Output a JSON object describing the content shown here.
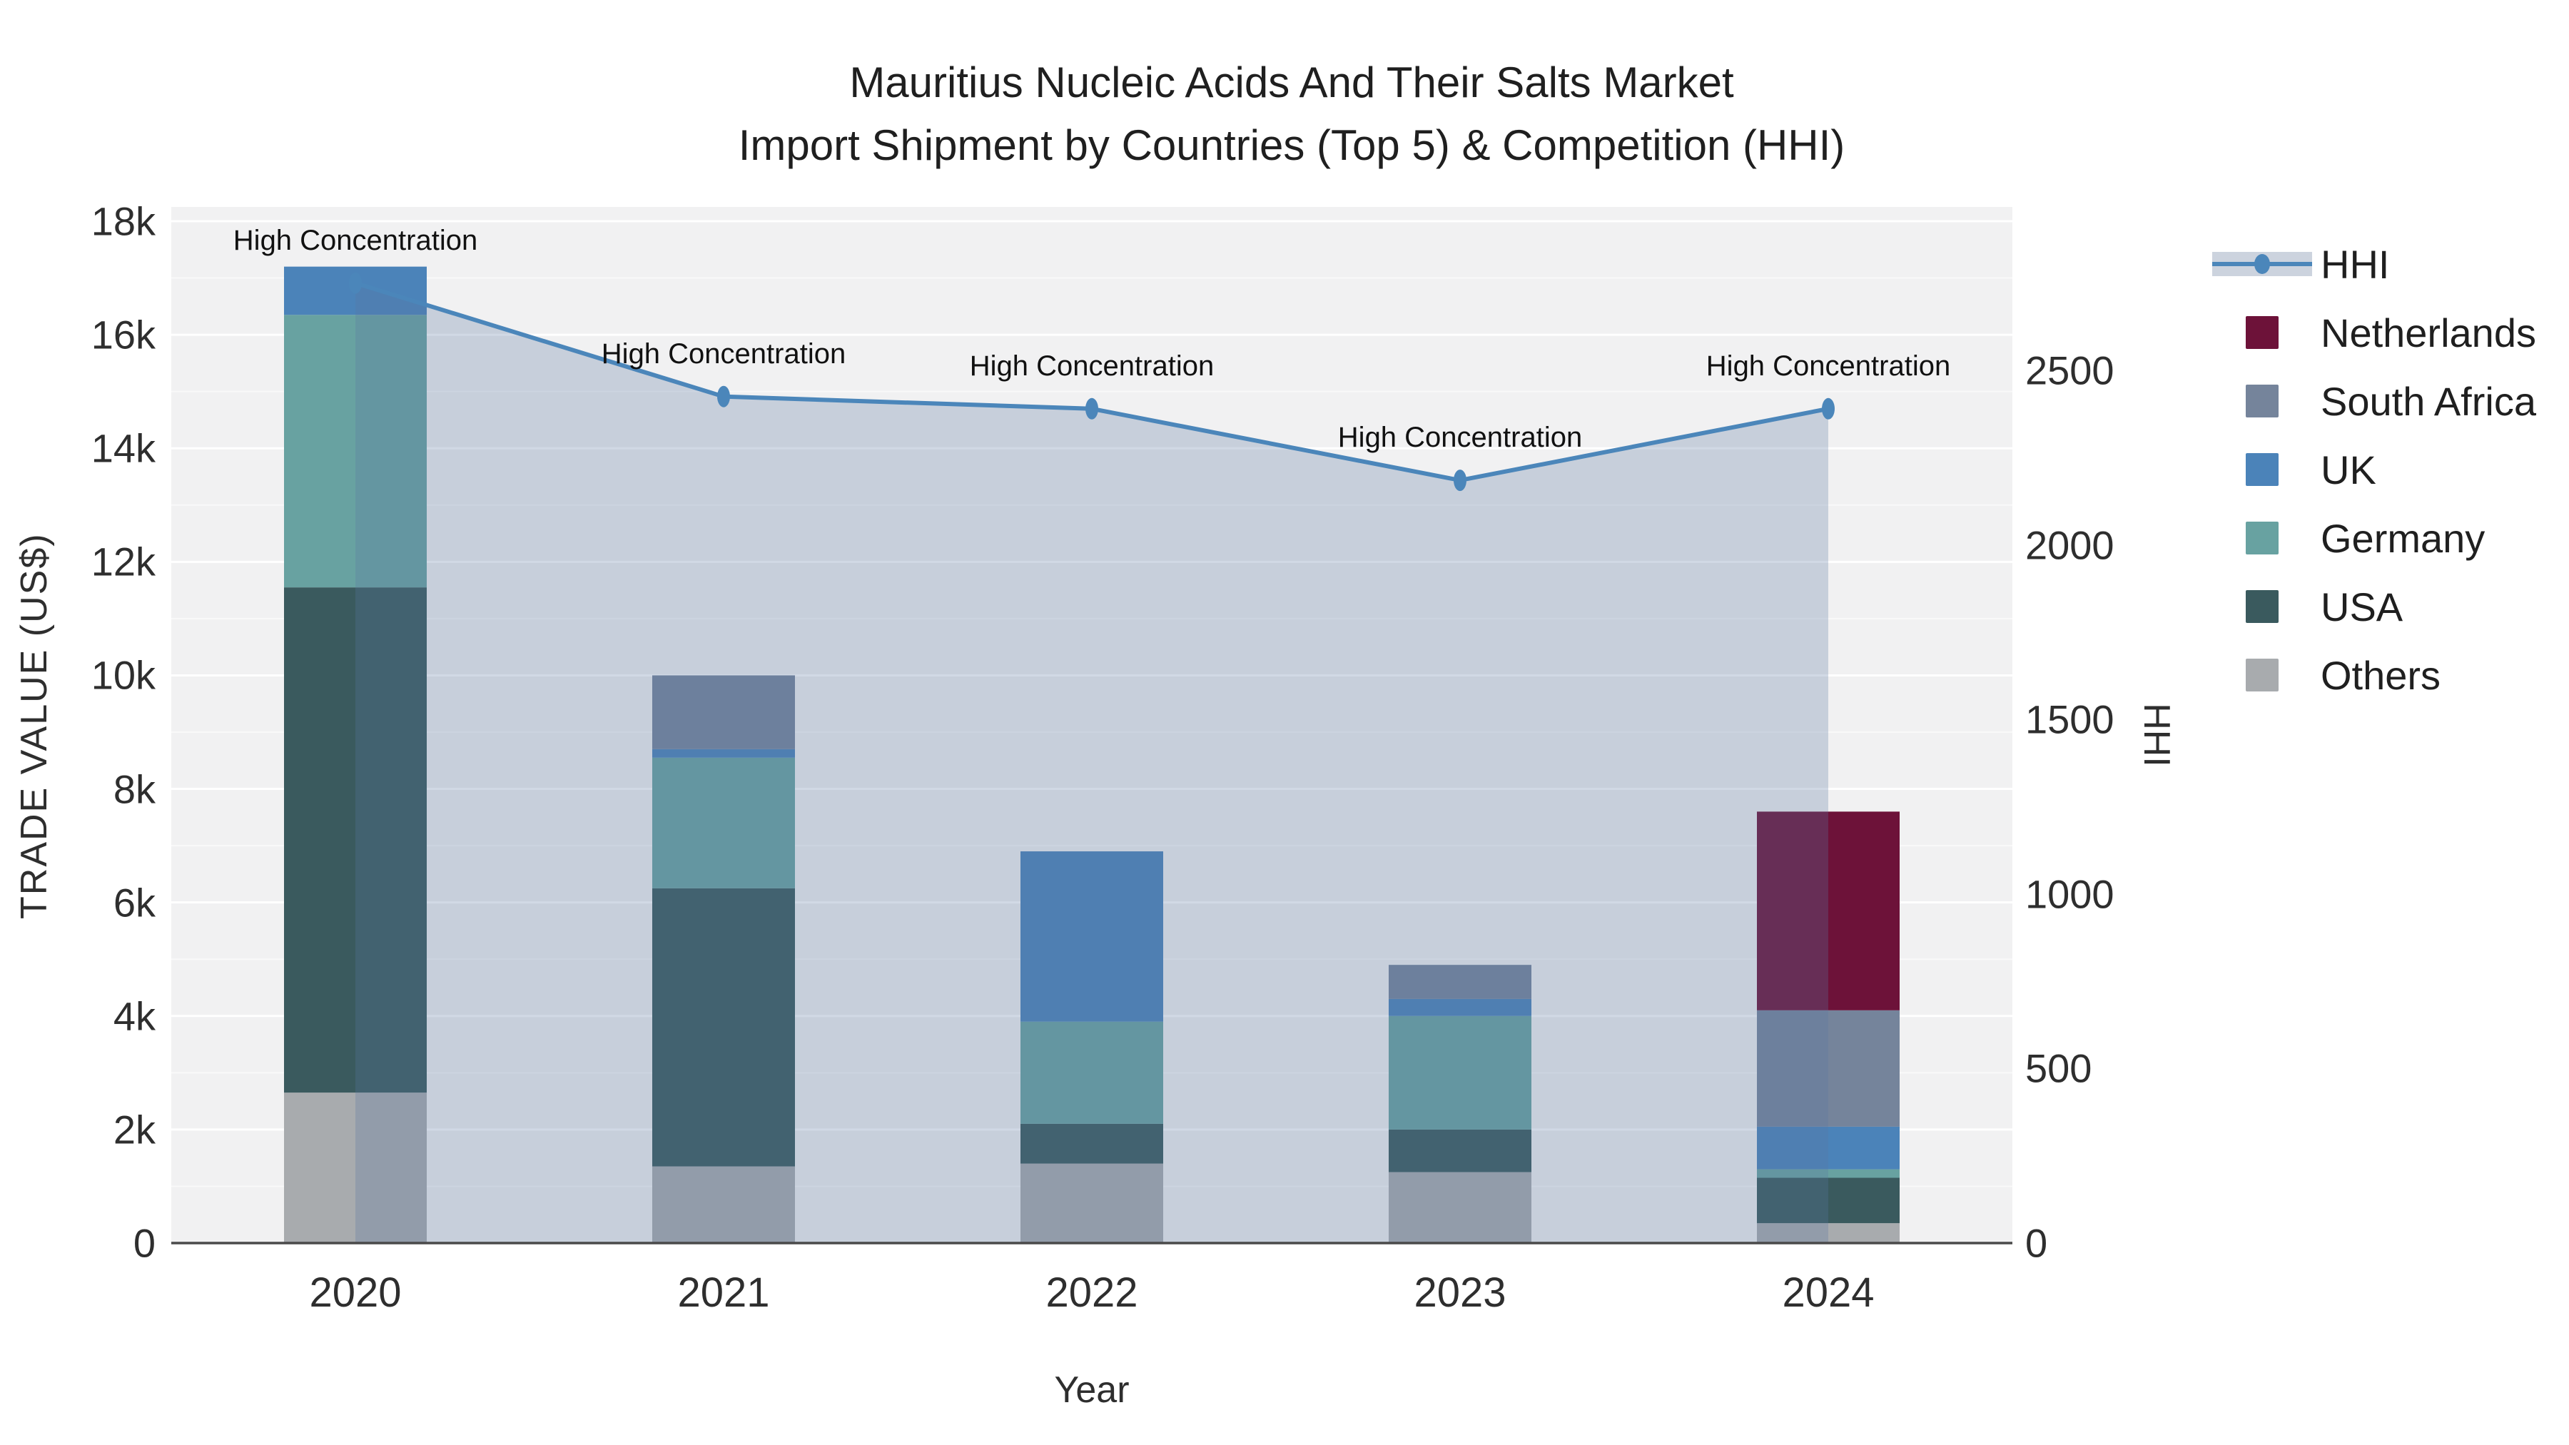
{
  "title": {
    "line1": "Mauritius Nucleic Acids And Their Salts Market",
    "line2": "Import Shipment by Countries (Top 5) & Competition (HHI)"
  },
  "colors": {
    "plot_background": "#f1f1f2",
    "gridline": "#ffffff",
    "axis_line": "#4a4a4a",
    "hhi_line": "#4b86ba",
    "hhi_fill": "rgba(90,120,160,0.28)",
    "hhi_legend_band": "#ccd3de",
    "netherlands": "#6d1239",
    "south_africa": "#75849b",
    "uk": "#4b83b9",
    "germany": "#68a2a1",
    "usa": "#3a5a5e",
    "others": "#a8abae"
  },
  "chart_data": {
    "type": "bar+line",
    "categories": [
      "2020",
      "2021",
      "2022",
      "2023",
      "2024"
    ],
    "bar_unit": "US$",
    "series": [
      {
        "name": "Others",
        "color": "#a8abae",
        "values": [
          2650,
          1350,
          1400,
          1250,
          350
        ]
      },
      {
        "name": "USA",
        "color": "#3a5a5e",
        "values": [
          8900,
          4900,
          700,
          750,
          800
        ]
      },
      {
        "name": "Germany",
        "color": "#68a2a1",
        "values": [
          4800,
          2300,
          1800,
          2000,
          150
        ]
      },
      {
        "name": "UK",
        "color": "#4b83b9",
        "values": [
          850,
          150,
          3000,
          300,
          750
        ]
      },
      {
        "name": "South Africa",
        "color": "#75849b",
        "values": [
          0,
          1300,
          0,
          600,
          2050
        ]
      },
      {
        "name": "Netherlands",
        "color": "#6d1239",
        "values": [
          0,
          0,
          0,
          0,
          3500
        ]
      }
    ],
    "bar_totals": [
      17200,
      10000,
      6900,
      4900,
      7600
    ],
    "line": {
      "name": "HHI",
      "color": "#4b86ba",
      "fill_color": "rgba(90,120,160,0.28)",
      "values": [
        2750,
        2425,
        2390,
        2185,
        2390
      ]
    },
    "annotation_text": "High Concentration",
    "y_left": {
      "title": "TRADE VALUE (US$)",
      "ticks": [
        "0",
        "2k",
        "4k",
        "6k",
        "8k",
        "10k",
        "12k",
        "14k",
        "16k",
        "18k"
      ],
      "tick_values": [
        0,
        2000,
        4000,
        6000,
        8000,
        10000,
        12000,
        14000,
        16000,
        18000
      ],
      "range": [
        0,
        18000
      ],
      "grid": true
    },
    "y_right": {
      "title": "HHI",
      "ticks": [
        "0",
        "500",
        "1000",
        "1500",
        "2000",
        "2500"
      ],
      "tick_values": [
        0,
        500,
        1000,
        1500,
        2000,
        2500
      ],
      "range": [
        0,
        2970
      ]
    },
    "x": {
      "title": "Year"
    },
    "legend_order": [
      "HHI",
      "Netherlands",
      "South Africa",
      "UK",
      "Germany",
      "USA",
      "Others"
    ],
    "legend_position": "right"
  }
}
